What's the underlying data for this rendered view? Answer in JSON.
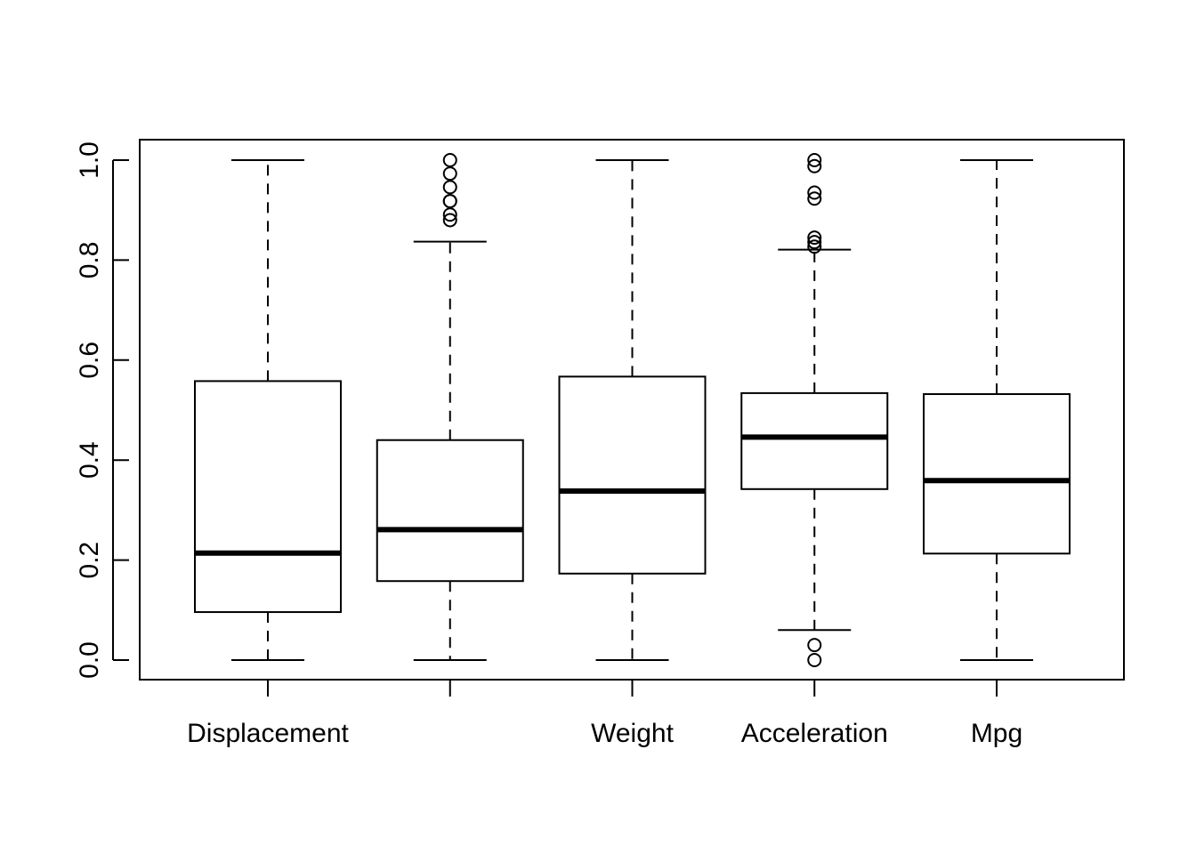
{
  "chart_data": {
    "type": "boxplot",
    "title": "",
    "xlabel": "",
    "ylabel": "",
    "ylim": [
      0.0,
      1.0
    ],
    "yticks": [
      0.0,
      0.2,
      0.4,
      0.6,
      0.8,
      1.0
    ],
    "ytick_labels": [
      "0.0",
      "0.2",
      "0.4",
      "0.6",
      "0.8",
      "1.0"
    ],
    "grid": false,
    "categories": [
      "Displacement",
      "",
      "Weight",
      "Acceleration",
      "Mpg"
    ],
    "boxes": [
      {
        "label": "Displacement",
        "whisker_low": 0.0,
        "q1": 0.096,
        "median": 0.214,
        "q3": 0.558,
        "whisker_high": 1.0,
        "outliers": []
      },
      {
        "label": "",
        "whisker_low": 0.0,
        "q1": 0.158,
        "median": 0.261,
        "q3": 0.44,
        "whisker_high": 0.837,
        "outliers": [
          0.88,
          0.891,
          0.918,
          0.918,
          0.946,
          0.973,
          1.0
        ]
      },
      {
        "label": "Weight",
        "whisker_low": 0.0,
        "q1": 0.173,
        "median": 0.338,
        "q3": 0.567,
        "whisker_high": 1.0,
        "outliers": []
      },
      {
        "label": "Acceleration",
        "whisker_low": 0.06,
        "q1": 0.342,
        "median": 0.446,
        "q3": 0.534,
        "whisker_high": 0.821,
        "outliers": [
          0.0,
          0.03,
          0.827,
          0.836,
          0.845,
          0.923,
          0.935,
          0.988,
          1.0
        ]
      },
      {
        "label": "Mpg",
        "whisker_low": 0.0,
        "q1": 0.213,
        "median": 0.359,
        "q3": 0.532,
        "whisker_high": 1.0,
        "outliers": []
      }
    ]
  }
}
